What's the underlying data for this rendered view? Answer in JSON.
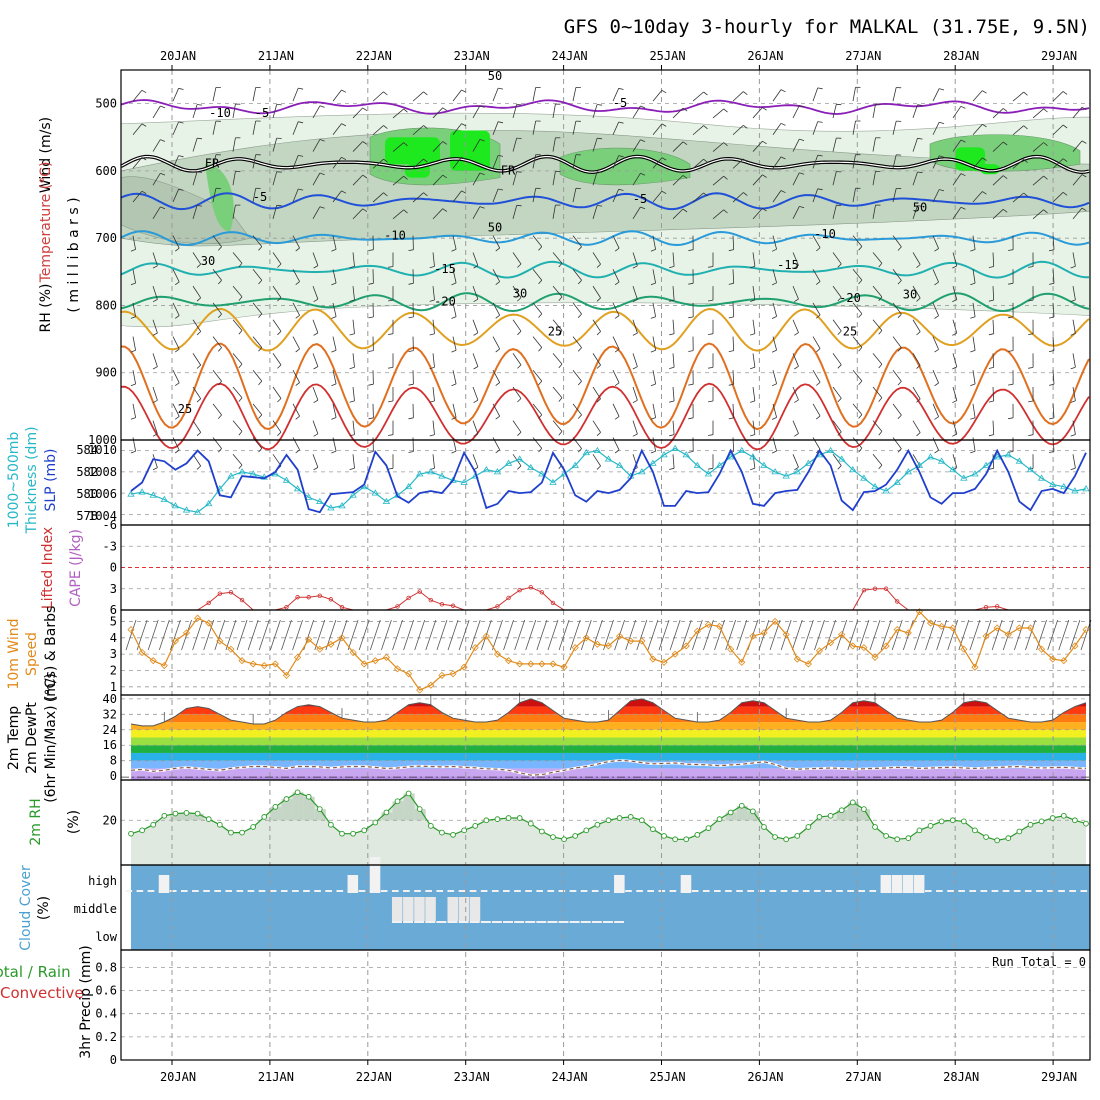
{
  "title": "GFS 0~10day 3-hourly for MALKAL (31.75E, 9.5N)",
  "dates": [
    "20JAN",
    "21JAN",
    "22JAN",
    "23JAN",
    "24JAN",
    "25JAN",
    "26JAN",
    "27JAN",
    "28JAN",
    "29JAN"
  ],
  "colors": {
    "frame": "#000000",
    "grid": "#9a9a9a",
    "sea": "#1f3fcc",
    "thick": "#27b8c8",
    "lifted": "#d03030",
    "wind10": "#e08a1a",
    "rh2m": "#2a9a2a",
    "dew": "#8a5a4a",
    "cloud_bg": "#6aaad6",
    "cloud_block": "#f2f2f2",
    "purple": "#8a1fb8",
    "fr": "#000000"
  },
  "panels": {
    "upper": {
      "labels": {
        "wind": "Wind (m/s)",
        "temp": "Temperature (°C)",
        "rh": "RH (%)",
        "axis": "( m i l l i b a r s )"
      },
      "yticks": [
        500,
        600,
        700,
        800,
        900,
        1000
      ],
      "isotherm_labels": [
        "-10",
        "-5",
        "-5",
        "FR",
        "FR",
        "-5",
        "-5",
        "-10",
        "-10",
        "-15",
        "-15",
        "-20",
        "-20",
        "25",
        "25",
        "25",
        "30",
        "30",
        "30",
        "50",
        "50",
        "50"
      ]
    },
    "thickness": {
      "labels": {
        "left": "1000~500mb",
        "mid": "Thickness (dm)",
        "right": "SLP (mb)"
      },
      "yticks_left": [
        "584",
        "582",
        "580",
        "578"
      ],
      "yticks_right": [
        "1010",
        "1008",
        "1006",
        "1004"
      ]
    },
    "lifted": {
      "labels": {
        "left": "Lifted Index",
        "right": "CAPE (J/kg)"
      },
      "yticks": [
        "-6",
        "-3",
        "0",
        "3",
        "6"
      ]
    },
    "wind10m": {
      "labels": {
        "a": "10m Wind",
        "b": "Speed",
        "c": "(m/s) & Barbs"
      },
      "yticks": [
        "5",
        "4",
        "3",
        "2",
        "1"
      ]
    },
    "temp2m": {
      "labels": {
        "a": "2m Temp",
        "b": "2m DewPt",
        "c": "(6hr Min/Max) (°C)"
      },
      "yticks": [
        "40",
        "32",
        "24",
        "16",
        "8",
        "0"
      ]
    },
    "rh2m": {
      "labels": {
        "a": "2m RH",
        "b": "(%)"
      },
      "yticks": [
        "20"
      ]
    },
    "cloud": {
      "labels": {
        "a": "Cloud Cover",
        "b": "(%)"
      },
      "levels": [
        "high",
        "middle",
        "low"
      ]
    },
    "precip": {
      "labels": {
        "a": "Total / Rain",
        "b": "Convective",
        "c": "3hr Precip (mm)"
      },
      "run_total": "Run Total = 0",
      "yticks": [
        "0.8",
        "0.6",
        "0.4",
        "0.2",
        "0"
      ]
    }
  },
  "chart_data": [
    {
      "type": "line",
      "name": "slp",
      "ylim": [
        1003,
        1011
      ],
      "values": [
        1006.2,
        1007.0,
        1009.2,
        1009.0,
        1008.2,
        1008.8,
        1010.0,
        1009.0,
        1005.8,
        1005.6,
        1007.6,
        1007.5,
        1007.4,
        1008.0,
        1009.6,
        1008.2,
        1004.5,
        1004.2,
        1005.9,
        1006.0,
        1006.1,
        1006.8,
        1009.9,
        1008.6,
        1005.7,
        1005.1,
        1006.0,
        1006.2,
        1006.0,
        1007.2,
        1009.8,
        1008.0,
        1004.6,
        1005.0,
        1006.2,
        1006.0,
        1006.1,
        1007.0,
        1009.8,
        1008.2,
        1005.8,
        1005.2,
        1006.2,
        1006.0,
        1006.3,
        1007.4,
        1010.0,
        1008.0,
        1004.8,
        1004.8,
        1006.2,
        1006.0,
        1006.1,
        1007.8,
        1010.0,
        1008.0,
        1005.0,
        1004.8,
        1006.0,
        1006.2,
        1006.3,
        1008.0,
        1010.0,
        1008.6,
        1005.3,
        1004.4,
        1006.1,
        1006.2,
        1006.8,
        1008.2,
        1010.0,
        1008.0,
        1005.6,
        1005.0,
        1006.0,
        1006.0,
        1006.4,
        1007.8,
        1010.0,
        1008.0,
        1005.2,
        1004.4,
        1006.2,
        1006.4,
        1006.0,
        1007.6,
        1009.8
      ]
    },
    {
      "type": "line",
      "name": "thickness",
      "ylim": [
        577,
        585
      ],
      "values": [
        579.9,
        580.1,
        579.8,
        579.4,
        578.8,
        578.4,
        578.2,
        579.0,
        580.4,
        581.6,
        582.0,
        581.8,
        581.5,
        581.8,
        581.2,
        580.4,
        579.6,
        579.2,
        578.6,
        578.8,
        579.8,
        580.6,
        580.0,
        579.2,
        579.8,
        580.6,
        581.8,
        582.0,
        581.6,
        581.2,
        581.0,
        581.6,
        582.2,
        582.0,
        582.8,
        583.2,
        582.4,
        581.8,
        581.0,
        581.8,
        582.6,
        583.8,
        584.0,
        583.2,
        582.6,
        581.6,
        582.0,
        582.8,
        583.6,
        584.2,
        583.6,
        582.6,
        581.8,
        582.6,
        583.4,
        584.0,
        583.4,
        582.6,
        582.0,
        581.6,
        582.0,
        582.8,
        583.6,
        584.0,
        583.2,
        582.2,
        581.4,
        580.6,
        580.2,
        581.0,
        582.0,
        582.6,
        583.4,
        583.0,
        582.2,
        581.4,
        581.8,
        582.6,
        583.4,
        583.6,
        583.0,
        582.2,
        581.4,
        580.8,
        580.6,
        580.2,
        580.4
      ]
    },
    {
      "type": "line",
      "name": "lifted_index",
      "ylim": [
        -6,
        6
      ],
      "values": [
        6,
        6,
        6,
        6,
        6,
        6,
        6,
        5,
        3.7,
        3.5,
        4.6,
        6,
        6,
        6,
        5.6,
        4.2,
        4.2,
        4,
        4.5,
        5.6,
        6,
        6,
        6,
        6,
        5.5,
        4.3,
        3.4,
        4.6,
        5.2,
        5.4,
        6,
        6,
        6,
        5.5,
        4.3,
        3.2,
        2.8,
        3.5,
        5.0,
        6,
        6,
        6,
        6,
        6,
        6,
        6,
        6,
        6.0,
        6,
        6,
        6,
        6,
        6,
        6,
        6,
        6,
        6,
        6,
        6,
        6,
        6,
        6,
        6,
        6,
        6,
        6,
        3.2,
        3.0,
        3.0,
        4.8,
        6,
        6,
        6,
        6,
        6,
        6,
        6,
        5.6,
        5.5,
        6,
        6,
        6,
        6,
        6,
        6,
        6,
        6
      ]
    },
    {
      "type": "line",
      "name": "wind10m_speed",
      "ylim": [
        0.5,
        5.7
      ],
      "values": [
        4.5,
        3.1,
        2.6,
        2.3,
        3.8,
        4.3,
        5.2,
        4.9,
        3.8,
        3.3,
        2.6,
        2.4,
        2.3,
        2.4,
        1.7,
        2.8,
        3.9,
        3.3,
        3.6,
        4.0,
        3.1,
        2.4,
        2.6,
        2.8,
        2.1,
        1.8,
        0.8,
        1.1,
        1.7,
        1.8,
        2.2,
        3.4,
        4.1,
        3.0,
        2.6,
        2.4,
        2.4,
        2.4,
        2.4,
        2.2,
        3.4,
        4.0,
        3.6,
        3.5,
        4.1,
        3.8,
        3.8,
        2.7,
        2.5,
        3.0,
        3.5,
        4.4,
        4.8,
        4.7,
        3.3,
        2.5,
        4.1,
        4.3,
        5.0,
        4.2,
        2.7,
        2.4,
        3.2,
        3.7,
        4.2,
        3.5,
        3.4,
        2.8,
        3.5,
        4.5,
        4.3,
        5.6,
        4.9,
        4.7,
        4.6,
        3.3,
        2.2,
        4.1,
        4.6,
        4.2,
        4.6,
        4.6,
        3.3,
        2.7,
        2.6,
        3.5,
        4.5
      ]
    },
    {
      "type": "area",
      "name": "temp2m",
      "ylim": [
        -2,
        42
      ],
      "values": [
        27,
        26,
        26,
        28,
        31,
        35,
        36,
        35,
        32,
        29,
        28,
        27,
        27,
        29,
        33,
        36,
        37,
        36,
        33,
        30,
        29,
        28,
        28,
        29,
        33,
        37,
        38,
        37,
        33,
        30,
        29,
        28,
        28,
        29,
        33,
        38,
        40,
        38,
        34,
        30,
        29,
        28,
        28,
        29,
        34,
        39,
        40,
        38,
        34,
        30,
        29,
        28,
        28,
        29,
        33,
        38,
        39,
        38,
        34,
        30,
        29,
        28,
        28,
        29,
        33,
        38,
        39,
        38,
        34,
        30,
        29,
        28,
        28,
        29,
        33,
        38,
        39,
        38,
        34,
        30,
        29,
        28,
        28,
        29,
        33,
        36,
        38
      ]
    },
    {
      "type": "line",
      "name": "dewpoint2m",
      "ylim": [
        -2,
        42
      ],
      "values": [
        3,
        3.5,
        2.5,
        3,
        4,
        4.5,
        4,
        3.5,
        3,
        4,
        4.5,
        5,
        5,
        4.5,
        4,
        5,
        5,
        4.8,
        4.2,
        4.8,
        5,
        5,
        4.5,
        4,
        4.2,
        4.8,
        5.2,
        5,
        4.8,
        5,
        4.6,
        4.3,
        3.8,
        3.6,
        3,
        1.8,
        0.5,
        0.8,
        2,
        3,
        4.2,
        5,
        6.2,
        7.5,
        8.2,
        7.8,
        7,
        6.4,
        6.6,
        6.8,
        6.2,
        6,
        5.8,
        5.4,
        5.8,
        6.2,
        6.8,
        7.4,
        6,
        4,
        3.6,
        3.8,
        4,
        4.2,
        4,
        3.6,
        3.8,
        4,
        4.2,
        4.6,
        4.4,
        4,
        4.2,
        4.4,
        4.6,
        4.2,
        4,
        4.2,
        4.4,
        4.8,
        5,
        4.6,
        4.2,
        4.4,
        4.6,
        4.2,
        4
      ]
    },
    {
      "type": "area",
      "name": "rh2m",
      "ylim": [
        0,
        38
      ],
      "values": [
        14,
        15.5,
        18,
        22,
        23,
        23.3,
        23,
        20.5,
        18,
        14.5,
        14.5,
        17,
        21.5,
        26,
        29.5,
        32.5,
        30.5,
        25,
        18,
        14,
        14,
        15.5,
        19,
        23.5,
        28.5,
        32,
        25,
        17.5,
        14.5,
        13.5,
        15.5,
        17.5,
        20,
        20.5,
        21,
        21,
        18.5,
        15,
        12.5,
        11.5,
        13,
        15.5,
        18,
        20,
        21,
        21.5,
        20,
        16,
        13,
        11.5,
        11.5,
        13.5,
        16.5,
        20.5,
        23.5,
        26.5,
        24,
        17,
        12.5,
        11.5,
        13,
        17,
        21.5,
        22,
        24.5,
        28,
        25,
        17,
        13,
        11.5,
        12,
        15.5,
        17.5,
        19.5,
        20,
        19.5,
        15.5,
        12.5,
        11,
        12,
        15,
        18,
        19.5,
        21,
        22,
        20,
        18.5
      ]
    },
    {
      "type": "table",
      "name": "cloud_cover",
      "rows": [
        "high",
        "middle",
        "low"
      ],
      "high_blocks": [
        [
          3,
          1
        ],
        [
          20,
          1
        ],
        [
          22,
          2
        ],
        [
          44,
          1
        ],
        [
          50,
          1
        ],
        [
          68,
          1
        ],
        [
          69,
          1
        ],
        [
          70,
          1
        ],
        [
          71,
          1
        ]
      ],
      "middle_blocks": [
        [
          24,
          1
        ],
        [
          25,
          1
        ],
        [
          26,
          1
        ],
        [
          27,
          1
        ],
        [
          29,
          1
        ],
        [
          30,
          1
        ],
        [
          31,
          1
        ]
      ]
    }
  ]
}
